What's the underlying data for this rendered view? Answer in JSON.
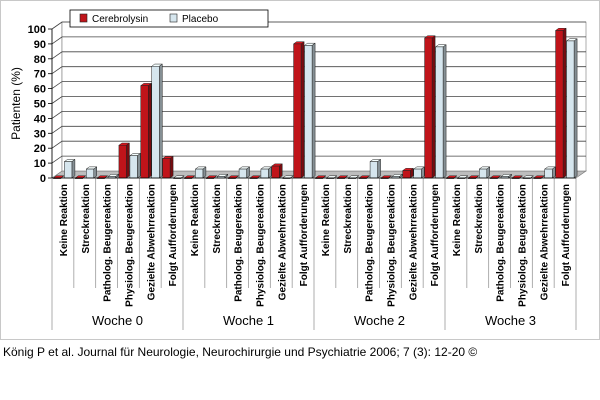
{
  "chart_data": {
    "type": "bar",
    "ylabel": "Patienten (%)",
    "ylim": [
      0,
      100
    ],
    "yticks": [
      0,
      10,
      20,
      30,
      40,
      50,
      60,
      70,
      80,
      90,
      100
    ],
    "grid": true,
    "legend": "top-left",
    "categories": [
      "Keine Reaktion",
      "Streckreaktion",
      "Patholog. Beugereaktion",
      "Physiolog. Beugereaktion",
      "Gezielte Abwehrreaktion",
      "Folgt Aufforderungen",
      "Keine Reaktion",
      "Streckreaktion",
      "Patholog. Beugereaktion",
      "Physiolog. Beugereaktion",
      "Gezielte Abwehrreaktion",
      "Folgt Aufforderungen",
      "Keine Reaktion",
      "Streckreaktion",
      "Patholog. Beugereaktion",
      "Physiolog. Beugereaktion",
      "Gezielte Abwehrreaktion",
      "Folgt Aufforderungen",
      "Keine Reaktion",
      "Streckreaktion",
      "Patholog. Beugereaktion",
      "Physiolog. Beugereaktion",
      "Gezielte Abwehrreaktion",
      "Folgt Aufforderungen"
    ],
    "groups": [
      "Woche 0",
      "Woche 1",
      "Woche 2",
      "Woche 3"
    ],
    "series": [
      {
        "name": "Cerebrolysin",
        "color": "#c0141a",
        "values": [
          0,
          0,
          0,
          22,
          62,
          13,
          0,
          0,
          0,
          0,
          8,
          90,
          0,
          0,
          0,
          0,
          5,
          94,
          0,
          0,
          0,
          0,
          0,
          99
        ]
      },
      {
        "name": "Placebo",
        "color": "#d6e6ee",
        "values": [
          11,
          6,
          1,
          15,
          75,
          0,
          6,
          1,
          6,
          6,
          0,
          89,
          0,
          0,
          11,
          1,
          6,
          88,
          0,
          6,
          1,
          0,
          6,
          92
        ]
      }
    ]
  },
  "citation": "König P et al. Journal für Neurologie, Neurochirurgie und Psychiatrie 2006; 7 (3): 12-20 ©"
}
